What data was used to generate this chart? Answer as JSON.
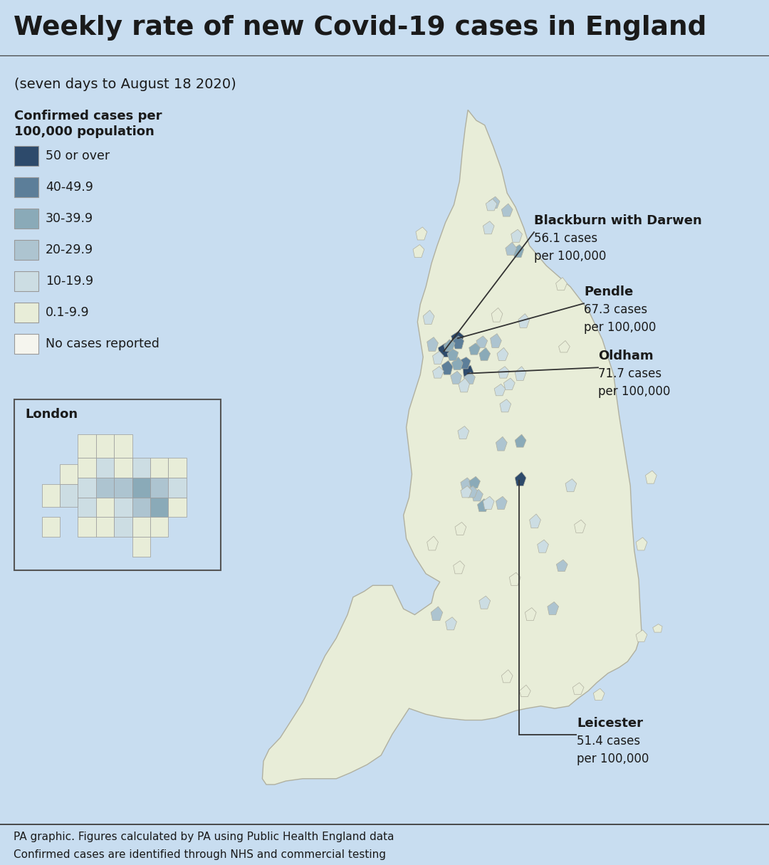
{
  "title": "Weekly rate of new Covid-19 cases in England",
  "subtitle": "(seven days to August 18 2020)",
  "legend_title": "Confirmed cases per\n100,000 population",
  "legend_items": [
    {
      "label": "50 or over",
      "color": "#2d4a6b"
    },
    {
      "label": "40-49.9",
      "color": "#5c7e99"
    },
    {
      "label": "30-39.9",
      "color": "#8aaab8"
    },
    {
      "label": "20-29.9",
      "color": "#adc4d0"
    },
    {
      "label": "10-19.9",
      "color": "#ccdde3"
    },
    {
      "label": "0.1-9.9",
      "color": "#e8edd8"
    },
    {
      "label": "No cases reported",
      "color": "#f5f5ee"
    }
  ],
  "bg_color": "#c8ddf0",
  "title_bg": "#ffffff",
  "text_color": "#1a1a1a",
  "england_fill": "#e8edd8",
  "england_border": "#b0b0a0",
  "london_label": "London",
  "footer_line1": "PA graphic. Figures calculated by PA using Public Health England data",
  "footer_line2": "Confirmed cases are identified through NHS and commercial testing"
}
